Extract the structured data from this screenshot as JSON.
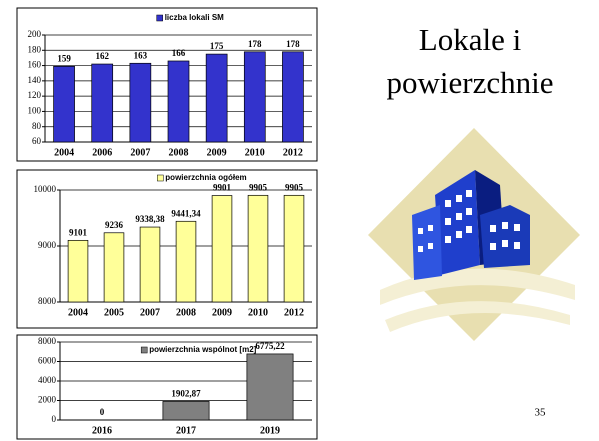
{
  "title_lines": [
    "Lokale i",
    "powierzchnie"
  ],
  "page_number": "35",
  "chart_data": [
    {
      "type": "bar",
      "categories": [
        "2004",
        "2006",
        "2007",
        "2008",
        "2009",
        "2010",
        "2012"
      ],
      "series": [
        {
          "name": "liczba lokali SM",
          "color": "#3333cc",
          "values": [
            159,
            162,
            163,
            166,
            175,
            178,
            178
          ]
        }
      ],
      "ylim": [
        60,
        200
      ],
      "yticks": [
        60,
        80,
        100,
        120,
        140,
        160,
        180,
        200
      ],
      "grid": true
    },
    {
      "type": "bar",
      "categories": [
        "2004",
        "2005",
        "2007",
        "2008",
        "2009",
        "2010",
        "2012"
      ],
      "series": [
        {
          "name": "powierzchnia ogółem",
          "color": "#ffff99",
          "values": [
            9101,
            9236,
            9338.38,
            9441.34,
            9901,
            9905,
            9905
          ],
          "value_labels": [
            "9101",
            "9236",
            "9338,38",
            "9441,34",
            "9901",
            "9905",
            "9905"
          ]
        }
      ],
      "ylim": [
        8000,
        10000
      ],
      "yticks": [
        8000,
        9000,
        10000
      ],
      "grid": true
    },
    {
      "type": "bar",
      "categories": [
        "2016",
        "2017",
        "2019"
      ],
      "series": [
        {
          "name": "powierzchnia wspólnot [m2]",
          "color": "#808080",
          "values": [
            0,
            1902.87,
            6775.22
          ],
          "value_labels": [
            "0",
            "1902,87",
            "6775,22"
          ]
        }
      ],
      "ylim": [
        0,
        8000
      ],
      "yticks": [
        0,
        2000,
        4000,
        6000,
        8000
      ],
      "grid": true
    }
  ]
}
